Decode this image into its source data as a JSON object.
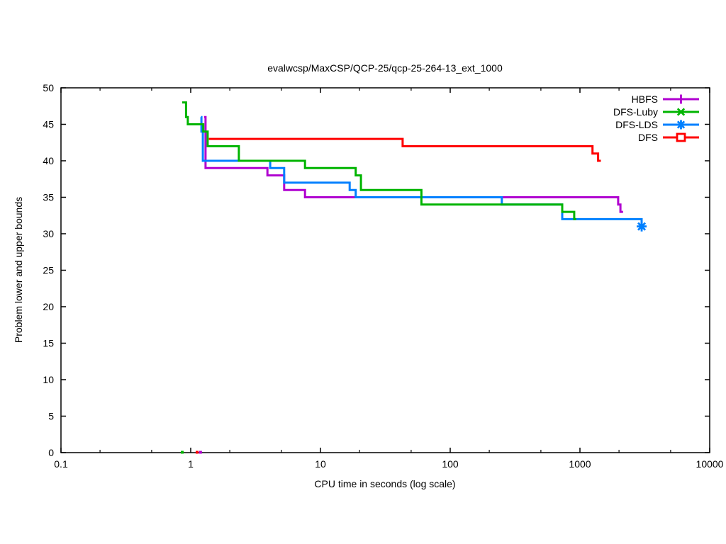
{
  "title": "evalwcsp/MaxCSP/QCP-25/qcp-25-264-13_ext_1000",
  "chart_data": {
    "type": "line",
    "title": "evalwcsp/MaxCSP/QCP-25/qcp-25-264-13_ext_1000",
    "xlabel": "CPU time in seconds (log scale)",
    "ylabel": "Problem lower and upper bounds",
    "x_scale": "log10",
    "xlim": [
      0.1,
      10000
    ],
    "ylim": [
      0,
      50
    ],
    "x_ticks": {
      "labels": [
        "0.1",
        "1",
        "10",
        "100",
        "1000",
        "10000"
      ],
      "values": [
        0.1,
        1,
        10,
        100,
        1000,
        10000
      ],
      "minor": [
        0.2,
        0.5,
        2,
        5,
        20,
        50,
        200,
        500,
        2000,
        5000
      ]
    },
    "y_ticks": [
      0,
      5,
      10,
      15,
      20,
      25,
      30,
      35,
      40,
      45,
      50
    ],
    "grid": false,
    "legend_position": "top-right-inside",
    "draw_order": [
      "HBFS",
      "DFS-LDS",
      "DFS-Luby",
      "DFS"
    ],
    "series": [
      {
        "name": "HBFS",
        "color": "#b000d0",
        "marker": "plus",
        "steps": [
          [
            1.27,
            46
          ],
          [
            1.3,
            39
          ],
          [
            3.9,
            38
          ],
          [
            5.25,
            36
          ],
          [
            7.6,
            35
          ],
          [
            1970,
            34
          ],
          [
            2050,
            33
          ]
        ],
        "end_x": 2150,
        "end_marker": false,
        "lower_bound_points": [
          [
            1.19,
            0
          ]
        ]
      },
      {
        "name": "DFS-Luby",
        "color": "#00b400",
        "marker": "cross",
        "steps": [
          [
            0.86,
            48
          ],
          [
            0.92,
            46
          ],
          [
            0.95,
            45
          ],
          [
            1.25,
            44
          ],
          [
            1.35,
            42
          ],
          [
            2.35,
            40
          ],
          [
            7.6,
            39
          ],
          [
            18.7,
            38
          ],
          [
            20.5,
            36
          ],
          [
            60,
            34
          ],
          [
            730,
            33
          ],
          [
            903,
            32
          ]
        ],
        "end_x": 935,
        "end_marker": false,
        "lower_bound_points": [
          [
            0.86,
            0
          ]
        ]
      },
      {
        "name": "DFS-LDS",
        "color": "#0080ff",
        "marker": "asterisk",
        "steps": [
          [
            1.2,
            46
          ],
          [
            1.21,
            44
          ],
          [
            1.24,
            40
          ],
          [
            4.1,
            39
          ],
          [
            5.25,
            37
          ],
          [
            16.8,
            36
          ],
          [
            18.7,
            35
          ],
          [
            250,
            34
          ],
          [
            730,
            32
          ],
          [
            2990,
            31
          ]
        ],
        "end_x": 2990,
        "end_marker": true,
        "lower_bound_points": []
      },
      {
        "name": "DFS",
        "color": "#ff0000",
        "marker": "open-square",
        "steps": [
          [
            1.38,
            43
          ],
          [
            43,
            42
          ],
          [
            1250,
            41
          ],
          [
            1380,
            40
          ]
        ],
        "end_x": 1450,
        "end_marker": false,
        "lower_bound_points": [
          [
            1.12,
            0
          ]
        ]
      }
    ]
  }
}
